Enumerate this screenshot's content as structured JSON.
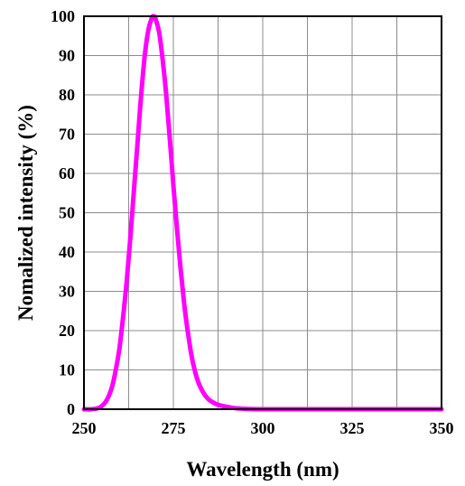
{
  "chart_data": {
    "type": "line",
    "title": "",
    "xlabel": "Wavelength (nm)",
    "ylabel": "Nomalized intensity (%)",
    "xlim": [
      250,
      350
    ],
    "ylim": [
      0,
      100
    ],
    "x_ticks": [
      250,
      275,
      300,
      325,
      350
    ],
    "y_ticks": [
      0,
      10,
      20,
      30,
      40,
      50,
      60,
      70,
      80,
      90,
      100
    ],
    "grid": true,
    "legend": "none",
    "series": [
      {
        "color": "#ff00ff",
        "x": [
          250,
          252,
          254,
          255,
          256,
          257,
          258,
          259,
          260,
          261,
          262,
          263,
          264,
          265,
          266,
          267,
          268,
          269,
          269.5,
          270,
          271,
          272,
          273,
          274,
          275,
          276,
          277,
          278,
          279,
          280,
          281,
          282,
          283,
          284,
          285,
          286,
          287,
          288,
          290,
          292,
          295,
          300,
          310,
          325,
          350
        ],
        "y": [
          0,
          0,
          0.3,
          0.8,
          1.8,
          3.5,
          6.2,
          10.5,
          16,
          24,
          33,
          44,
          56,
          68,
          80,
          90,
          96.5,
          99.6,
          100,
          99.4,
          96,
          89,
          80,
          69,
          57,
          46,
          36,
          27,
          20,
          14,
          9.8,
          6.8,
          4.8,
          3.4,
          2.4,
          1.8,
          1.3,
          1,
          0.6,
          0.3,
          0.1,
          0,
          0,
          0,
          0
        ]
      }
    ]
  }
}
